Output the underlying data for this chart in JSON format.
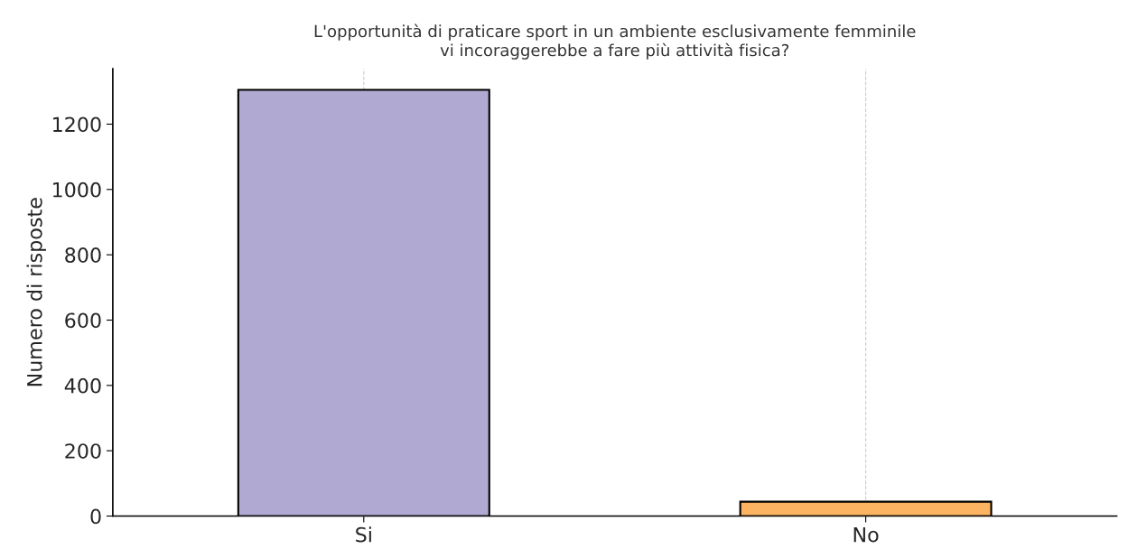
{
  "chart_data": {
    "type": "bar",
    "title": "L'opportunità di praticare sport in un ambiente esclusivamente femminile\nvi incoraggerebbe a fare più attività fisica?",
    "ylabel": "Numero di risposte",
    "categories": [
      "Si",
      "No"
    ],
    "values": [
      1305,
      44
    ],
    "colors": [
      "#b0a9d1",
      "#fdb462"
    ],
    "ylim": [
      0,
      1370
    ],
    "yticks": [
      0,
      200,
      400,
      600,
      800,
      1000,
      1200
    ],
    "grid": "x",
    "legend": false
  }
}
